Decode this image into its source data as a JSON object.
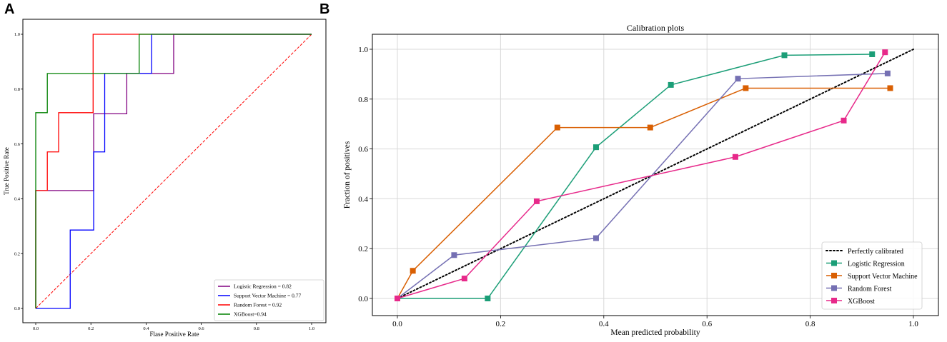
{
  "panels": {
    "a_label": "A",
    "b_label": "B"
  },
  "colors": {
    "logistic_roc": "#800080",
    "svm_roc": "#0000ff",
    "rf_roc": "#ff0000",
    "xgb_roc": "#008000",
    "diagonal": "#ff0000",
    "cal_logistic": "#1b9e77",
    "cal_svm": "#d95f02",
    "cal_rf": "#7570b3",
    "cal_xgb": "#e7298a",
    "cal_perfect": "#000000",
    "grid": "#d9d9d9"
  },
  "chart_data": [
    {
      "id": "roc",
      "type": "line",
      "title": "",
      "xlabel": "Flase Positive Rate",
      "ylabel": "True Positive Rate",
      "xlim": [
        0.0,
        1.0
      ],
      "ylim": [
        0.0,
        1.0
      ],
      "xticks": [
        "0.0",
        "0.2",
        "0.4",
        "0.6",
        "0.8",
        "1.0"
      ],
      "yticks": [
        "0.0",
        "0.2",
        "0.4",
        "0.6",
        "0.8",
        "1.0"
      ],
      "grid": false,
      "legend_position": "bottom-right",
      "series": [
        {
          "name": "Logistic Regression = 0.82",
          "color": "#800080",
          "x": [
            0,
            0,
            0.21,
            0.21,
            0.33,
            0.33,
            0.5,
            0.5,
            1.0
          ],
          "y": [
            0,
            0.43,
            0.43,
            0.71,
            0.71,
            0.857,
            0.857,
            1.0,
            1.0
          ]
        },
        {
          "name": "Support Vector Machine = 0.77",
          "color": "#0000ff",
          "x": [
            0,
            0.125,
            0.125,
            0.21,
            0.21,
            0.25,
            0.25,
            0.42,
            0.42,
            1.0
          ],
          "y": [
            0,
            0,
            0.286,
            0.286,
            0.571,
            0.571,
            0.857,
            0.857,
            1.0,
            1.0
          ]
        },
        {
          "name": "Random Forest = 0.92",
          "color": "#ff0000",
          "x": [
            0,
            0,
            0.042,
            0.042,
            0.083,
            0.083,
            0.208,
            0.208,
            1.0
          ],
          "y": [
            0,
            0.43,
            0.43,
            0.571,
            0.571,
            0.714,
            0.714,
            1.0,
            1.0
          ]
        },
        {
          "name": "XGBoost=0.94",
          "color": "#008000",
          "x": [
            0,
            0,
            0.042,
            0.042,
            0.375,
            0.375,
            1.0
          ],
          "y": [
            0,
            0.714,
            0.714,
            0.857,
            0.857,
            1.0,
            1.0
          ]
        }
      ],
      "reference_line": {
        "x": [
          0,
          1
        ],
        "y": [
          0,
          1
        ],
        "style": "dashed"
      }
    },
    {
      "id": "calibration",
      "type": "line",
      "title": "Calibration plots",
      "xlabel": "Mean predicted probability",
      "ylabel": "Fraction of positives",
      "xlim": [
        -0.05,
        1.05
      ],
      "ylim": [
        -0.05,
        1.05
      ],
      "xticks": [
        "0.0",
        "0.2",
        "0.4",
        "0.6",
        "0.8",
        "1.0"
      ],
      "yticks": [
        "0.0",
        "0.2",
        "0.4",
        "0.6",
        "0.8",
        "1.0"
      ],
      "grid": true,
      "legend_position": "bottom-right",
      "series": [
        {
          "name": "Perfectly calibrated",
          "color": "#000000",
          "style": "dotted",
          "x": [
            0,
            1
          ],
          "y": [
            0,
            1
          ]
        },
        {
          "name": "Logistic Regression",
          "color": "#1b9e77",
          "x": [
            0.0,
            0.175,
            0.385,
            0.53,
            0.75,
            0.92
          ],
          "y": [
            0.0,
            0.0,
            0.607,
            0.857,
            0.976,
            0.98
          ]
        },
        {
          "name": "Support Vector Machine",
          "color": "#d95f02",
          "x": [
            0.0,
            0.03,
            0.31,
            0.49,
            0.675,
            0.955
          ],
          "y": [
            0.0,
            0.111,
            0.686,
            0.686,
            0.844,
            0.844
          ]
        },
        {
          "name": "Random Forest",
          "color": "#7570b3",
          "x": [
            0.0,
            0.11,
            0.385,
            0.66,
            0.95
          ],
          "y": [
            0.0,
            0.174,
            0.242,
            0.882,
            0.903
          ]
        },
        {
          "name": "XGBoost",
          "color": "#e7298a",
          "x": [
            0.0,
            0.13,
            0.27,
            0.655,
            0.865,
            0.945
          ],
          "y": [
            0.0,
            0.08,
            0.39,
            0.568,
            0.714,
            0.988
          ]
        }
      ]
    }
  ]
}
